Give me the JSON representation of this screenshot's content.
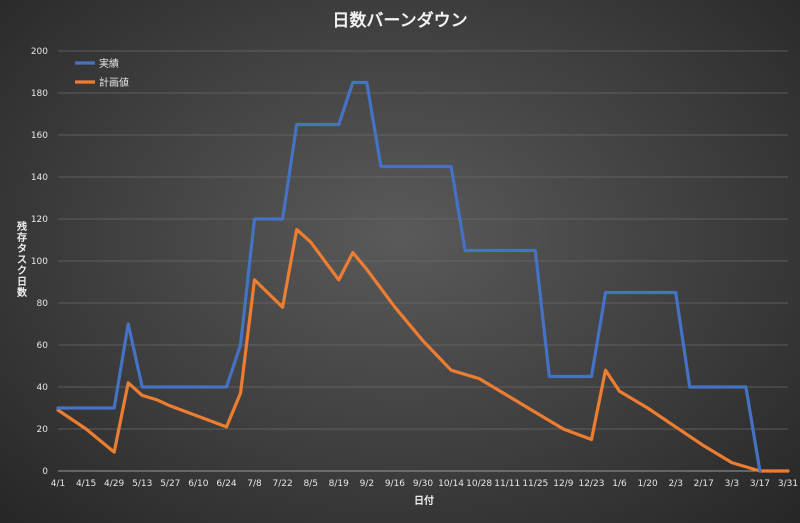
{
  "chart_data": {
    "type": "line",
    "title": "日数バーンダウン",
    "xlabel": "日付",
    "ylabel": "残存タスク日数",
    "ylim": [
      0,
      200
    ],
    "yticks": [
      0,
      20,
      40,
      60,
      80,
      100,
      120,
      140,
      160,
      180,
      200
    ],
    "categories": [
      "4/1",
      "4/15",
      "4/29",
      "5/13",
      "5/27",
      "6/10",
      "6/24",
      "7/8",
      "7/22",
      "8/5",
      "8/19",
      "9/2",
      "9/16",
      "9/30",
      "10/14",
      "10/28",
      "11/11",
      "11/25",
      "12/9",
      "12/23",
      "1/6",
      "1/20",
      "2/3",
      "2/17",
      "3/3",
      "3/17",
      "3/31"
    ],
    "grid": true,
    "legend_position": "top-left",
    "series": [
      {
        "name": "実績",
        "color": "#4472C4",
        "x": [
          "4/1",
          "4/29",
          "5/6",
          "5/13",
          "6/24",
          "7/1",
          "7/8",
          "7/22",
          "7/29",
          "8/19",
          "8/26",
          "9/2",
          "9/9",
          "10/14",
          "10/21",
          "11/25",
          "12/2",
          "12/23",
          "12/30",
          "2/3",
          "2/10",
          "3/10",
          "3/17"
        ],
        "values": [
          30,
          30,
          70,
          40,
          40,
          60,
          120,
          120,
          165,
          165,
          185,
          185,
          145,
          145,
          105,
          105,
          45,
          45,
          85,
          85,
          40,
          40,
          0
        ]
      },
      {
        "name": "計画値",
        "color": "#ED7D31",
        "x": [
          "4/1",
          "4/15",
          "4/29",
          "5/6",
          "5/13",
          "5/20",
          "5/27",
          "6/10",
          "6/24",
          "7/1",
          "7/8",
          "7/22",
          "7/29",
          "8/5",
          "8/12",
          "8/19",
          "8/26",
          "9/2",
          "9/16",
          "9/30",
          "10/14",
          "10/28",
          "11/11",
          "11/25",
          "12/9",
          "12/23",
          "12/30",
          "1/6",
          "1/20",
          "2/3",
          "2/17",
          "3/3",
          "3/17",
          "3/31"
        ],
        "values": [
          29,
          20,
          9,
          42,
          36,
          34,
          31,
          26,
          21,
          37,
          91,
          78,
          115,
          109,
          100,
          91,
          104,
          96,
          78,
          62,
          48,
          44,
          36,
          28,
          20,
          15,
          48,
          38,
          30,
          21,
          12,
          4,
          0,
          0
        ]
      }
    ]
  }
}
